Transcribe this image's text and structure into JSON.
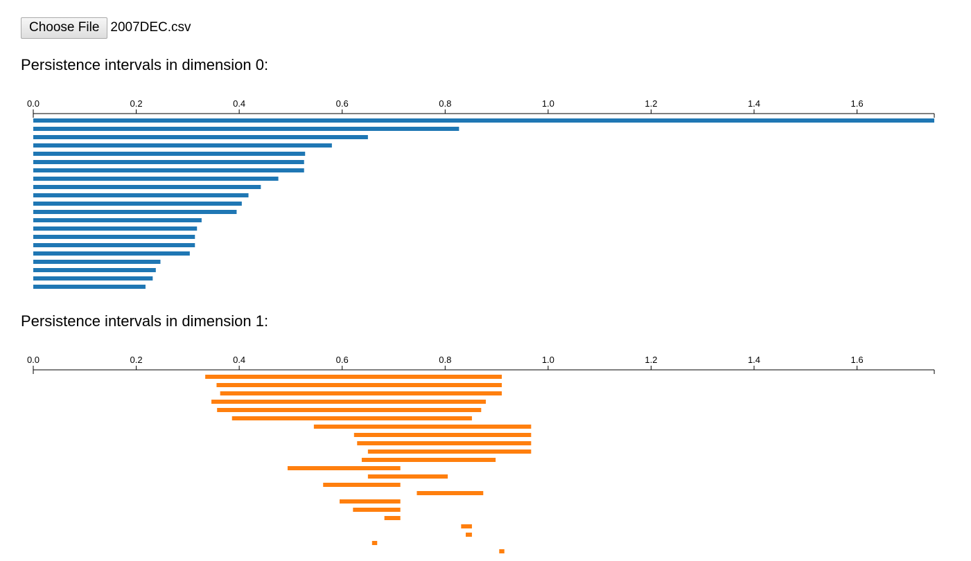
{
  "file_input": {
    "button_label": "Choose File",
    "file_name": "2007DEC.csv"
  },
  "chart_data": [
    {
      "type": "bar",
      "title": "Persistence intervals in dimension 0:",
      "xlim": [
        0,
        1.75
      ],
      "ticks": [
        "0.0",
        "0.2",
        "0.4",
        "0.6",
        "0.8",
        "1.0",
        "1.2",
        "1.4",
        "1.6"
      ],
      "color": "#1f77b4",
      "intervals": [
        [
          0,
          1.75
        ],
        [
          0,
          0.827
        ],
        [
          0,
          0.65
        ],
        [
          0,
          0.58
        ],
        [
          0,
          0.528
        ],
        [
          0,
          0.526
        ],
        [
          0,
          0.526
        ],
        [
          0,
          0.476
        ],
        [
          0,
          0.442
        ],
        [
          0,
          0.418
        ],
        [
          0,
          0.405
        ],
        [
          0,
          0.395
        ],
        [
          0,
          0.327
        ],
        [
          0,
          0.318
        ],
        [
          0,
          0.314
        ],
        [
          0,
          0.314
        ],
        [
          0,
          0.304
        ],
        [
          0,
          0.247
        ],
        [
          0,
          0.238
        ],
        [
          0,
          0.232
        ],
        [
          0,
          0.218
        ]
      ]
    },
    {
      "type": "bar",
      "title": "Persistence intervals in dimension 1:",
      "xlim": [
        0,
        1.75
      ],
      "ticks": [
        "0.0",
        "0.2",
        "0.4",
        "0.6",
        "0.8",
        "1.0",
        "1.2",
        "1.4",
        "1.6"
      ],
      "color": "#ff7f0e",
      "intervals": [
        [
          0.334,
          0.91
        ],
        [
          0.356,
          0.91
        ],
        [
          0.363,
          0.91
        ],
        [
          0.346,
          0.879
        ],
        [
          0.357,
          0.87
        ],
        [
          0.386,
          0.852
        ],
        [
          0.545,
          0.967
        ],
        [
          0.623,
          0.967
        ],
        [
          0.629,
          0.967
        ],
        [
          0.65,
          0.967
        ],
        [
          0.638,
          0.898
        ],
        [
          0.494,
          0.713
        ],
        [
          0.65,
          0.805
        ],
        [
          0.563,
          0.713
        ],
        [
          0.745,
          0.874
        ],
        [
          0.595,
          0.713
        ],
        [
          0.621,
          0.713
        ],
        [
          0.682,
          0.713
        ],
        [
          0.831,
          0.852
        ],
        [
          0.84,
          0.852
        ],
        [
          0.658,
          0.668
        ],
        [
          0.905,
          0.915
        ]
      ]
    }
  ]
}
